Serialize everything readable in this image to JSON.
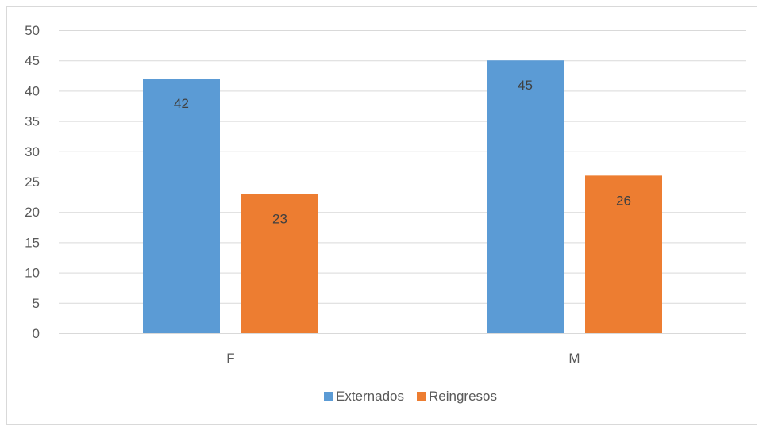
{
  "chart_data": {
    "type": "bar",
    "title": "",
    "xlabel": "",
    "ylabel": "",
    "categories": [
      "F",
      "M"
    ],
    "series": [
      {
        "name": "Externados",
        "values": [
          42,
          45
        ],
        "color": "#5b9bd5"
      },
      {
        "name": "Reingresos",
        "values": [
          23,
          26
        ],
        "color": "#ed7d31"
      }
    ],
    "ylim": [
      0,
      50
    ],
    "y_ticks": [
      0,
      5,
      10,
      15,
      20,
      25,
      30,
      35,
      40,
      45,
      50
    ],
    "grid": true,
    "legend_position": "bottom",
    "data_labels": true
  },
  "colors": {
    "grid": "#d9d9d9",
    "axis": "#d9d9d9",
    "text": "#595959"
  }
}
